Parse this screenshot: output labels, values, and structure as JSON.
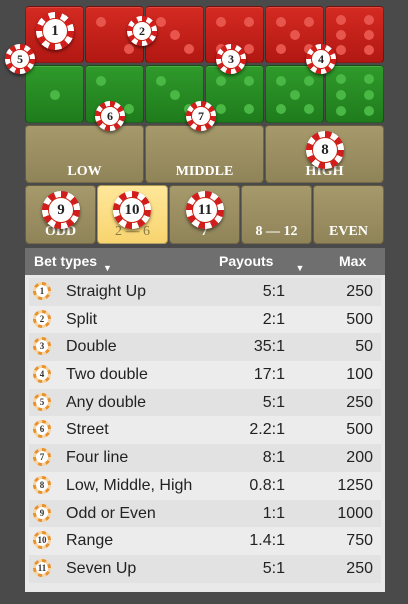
{
  "board": {
    "zones": {
      "low": "LOW",
      "middle": "MIDDLE",
      "high": "HIGH",
      "odd": "ODD",
      "range1": "2 — 6",
      "seven": "7",
      "range2": "8 — 12",
      "even": "EVEN"
    },
    "chips": [
      "1",
      "2",
      "3",
      "4",
      "5",
      "6",
      "7",
      "8",
      "9",
      "10",
      "11"
    ]
  },
  "table": {
    "headers": {
      "bet_types": "Bet types",
      "payouts": "Payouts",
      "max": "Max"
    },
    "rows": [
      {
        "num": "1",
        "name": "Straight Up",
        "payout": "5:1",
        "max": "250"
      },
      {
        "num": "2",
        "name": "Split",
        "payout": "2:1",
        "max": "500"
      },
      {
        "num": "3",
        "name": "Double",
        "payout": "35:1",
        "max": "50"
      },
      {
        "num": "4",
        "name": "Two double",
        "payout": "17:1",
        "max": "100"
      },
      {
        "num": "5",
        "name": "Any double",
        "payout": "5:1",
        "max": "250"
      },
      {
        "num": "6",
        "name": "Street",
        "payout": "2.2:1",
        "max": "500"
      },
      {
        "num": "7",
        "name": "Four line",
        "payout": "8:1",
        "max": "200"
      },
      {
        "num": "8",
        "name": "Low, Middle, High",
        "payout": "0.8:1",
        "max": "1250"
      },
      {
        "num": "9",
        "name": "Odd or Even",
        "payout": "1:1",
        "max": "1000"
      },
      {
        "num": "10",
        "name": "Range",
        "payout": "1.4:1",
        "max": "750"
      },
      {
        "num": "11",
        "name": "Seven Up",
        "payout": "5:1",
        "max": "250"
      }
    ]
  }
}
